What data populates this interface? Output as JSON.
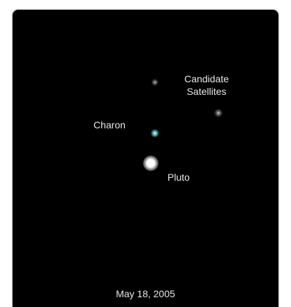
{
  "image": {
    "background_color": "#000000",
    "labels": {
      "candidate_line1": "Candidate",
      "candidate_line2": "Satellites",
      "charon": "Charon",
      "pluto": "Pluto",
      "date": "May 18, 2005"
    },
    "objects": [
      {
        "name": "candidate-satellite-1",
        "color": "#c8c8c8"
      },
      {
        "name": "candidate-satellite-2",
        "color": "#dcdcdc"
      },
      {
        "name": "charon",
        "color": "#5ac8c8"
      },
      {
        "name": "pluto",
        "color": "#ffffff"
      }
    ]
  }
}
